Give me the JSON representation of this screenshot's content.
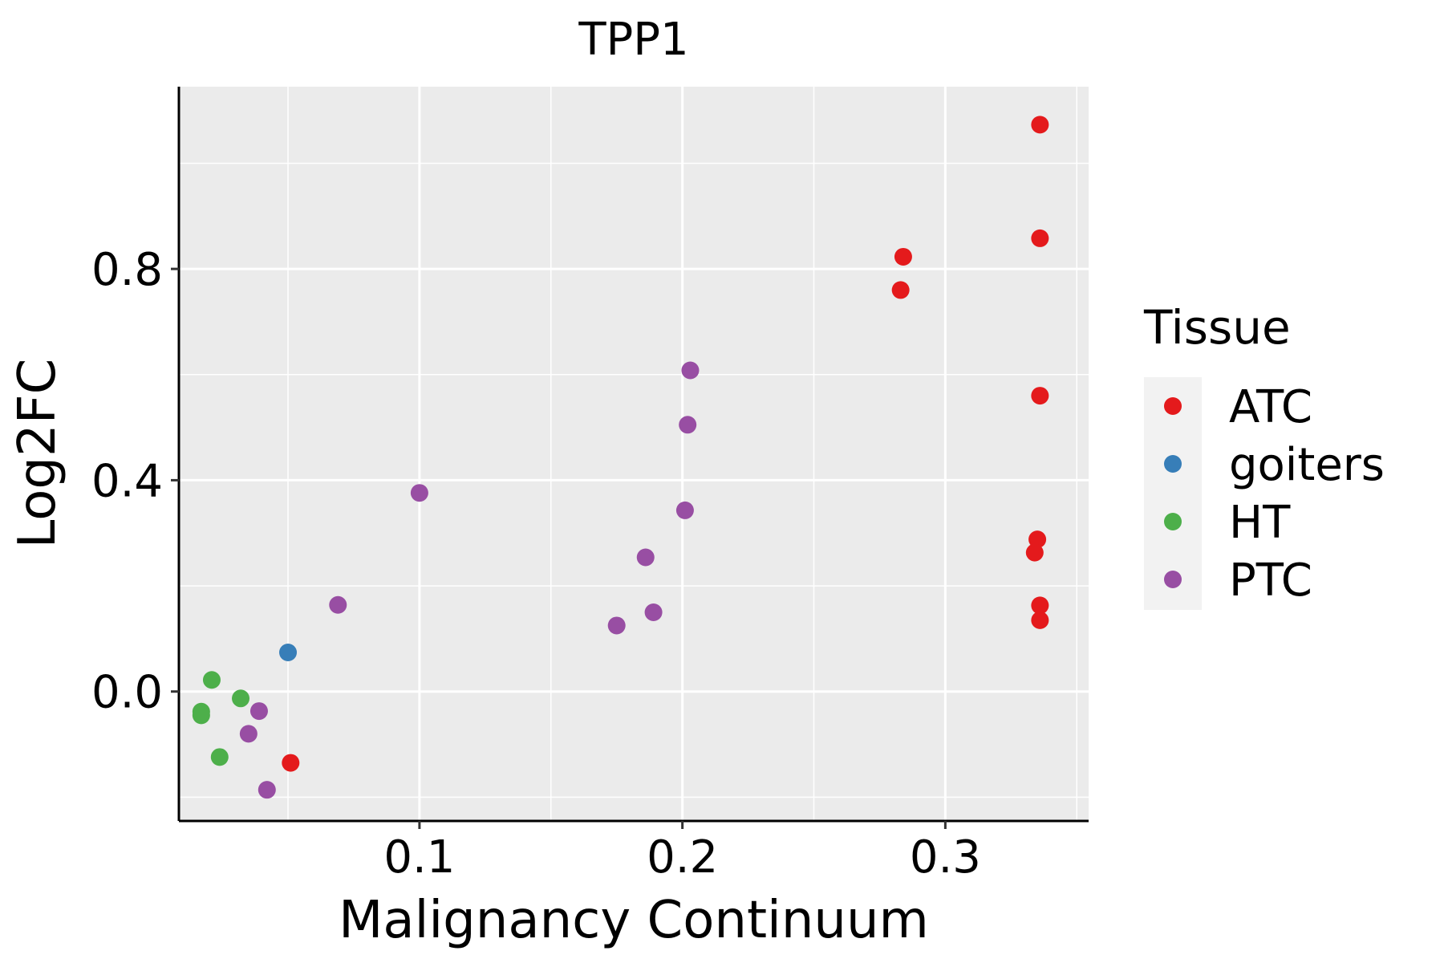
{
  "chart_data": {
    "type": "scatter",
    "title": "TPP1",
    "xlabel": "Malignancy Continuum",
    "ylabel": "Log2FC",
    "xlim": [
      0.0085,
      0.3545
    ],
    "ylim": [
      -0.245,
      1.145
    ],
    "x_ticks": [
      0.1,
      0.2,
      0.3
    ],
    "x_tick_labels": [
      "0.1",
      "0.2",
      "0.3"
    ],
    "y_ticks": [
      0.0,
      0.4,
      0.8
    ],
    "y_tick_labels": [
      "0.0",
      "0.4",
      "0.8"
    ],
    "x_minor_grid": [
      0.05,
      0.15,
      0.25,
      0.35
    ],
    "y_minor_grid": [
      -0.2,
      0.2,
      0.6,
      1.0
    ],
    "grid": true,
    "legend": {
      "title": "Tissue",
      "position": "right",
      "entries": [
        {
          "label": "ATC",
          "color": "#E41A1C"
        },
        {
          "label": "goiters",
          "color": "#377EB8"
        },
        {
          "label": "HT",
          "color": "#4DAF4A"
        },
        {
          "label": "PTC",
          "color": "#984EA3"
        }
      ]
    },
    "series": [
      {
        "name": "ATC",
        "color": "#E41A1C",
        "points": [
          {
            "x": 0.336,
            "y": 1.073
          },
          {
            "x": 0.336,
            "y": 0.858
          },
          {
            "x": 0.284,
            "y": 0.823
          },
          {
            "x": 0.283,
            "y": 0.76
          },
          {
            "x": 0.336,
            "y": 0.56
          },
          {
            "x": 0.335,
            "y": 0.288
          },
          {
            "x": 0.334,
            "y": 0.263
          },
          {
            "x": 0.336,
            "y": 0.163
          },
          {
            "x": 0.336,
            "y": 0.135
          },
          {
            "x": 0.051,
            "y": -0.135
          }
        ]
      },
      {
        "name": "goiters",
        "color": "#377EB8",
        "points": [
          {
            "x": 0.05,
            "y": 0.074
          }
        ]
      },
      {
        "name": "HT",
        "color": "#4DAF4A",
        "points": [
          {
            "x": 0.021,
            "y": 0.022
          },
          {
            "x": 0.032,
            "y": -0.013
          },
          {
            "x": 0.017,
            "y": -0.038
          },
          {
            "x": 0.017,
            "y": -0.045
          },
          {
            "x": 0.024,
            "y": -0.124
          }
        ]
      },
      {
        "name": "PTC",
        "color": "#984EA3",
        "points": [
          {
            "x": 0.203,
            "y": 0.608
          },
          {
            "x": 0.202,
            "y": 0.505
          },
          {
            "x": 0.1,
            "y": 0.376
          },
          {
            "x": 0.201,
            "y": 0.343
          },
          {
            "x": 0.186,
            "y": 0.254
          },
          {
            "x": 0.069,
            "y": 0.164
          },
          {
            "x": 0.189,
            "y": 0.15
          },
          {
            "x": 0.175,
            "y": 0.125
          },
          {
            "x": 0.039,
            "y": -0.037
          },
          {
            "x": 0.035,
            "y": -0.08
          },
          {
            "x": 0.042,
            "y": -0.186
          }
        ]
      }
    ]
  }
}
